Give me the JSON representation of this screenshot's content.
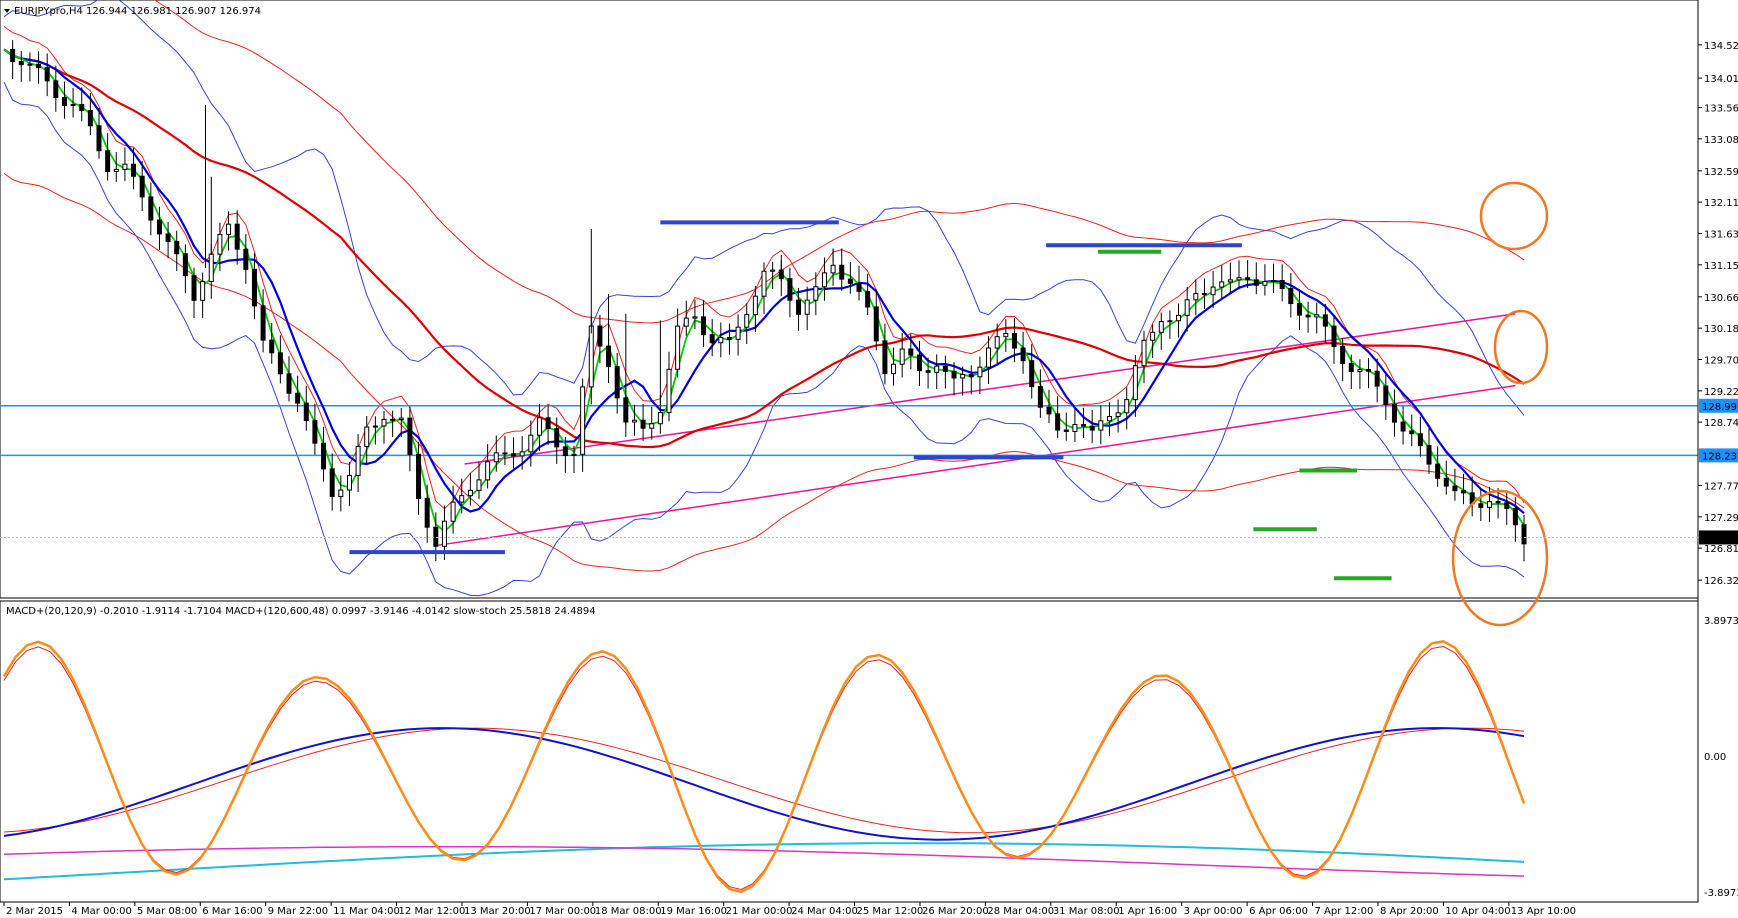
{
  "chart_data": {
    "type": "candlestick",
    "header_text": "EURJPYpro,H4  126.944 126.981 126.907 126.974",
    "indicator_text": "MACD+(20,120,9) -0.2010 -1.9114 -1.7104  MACD+(120,600,48) 0.0997 -3.9146 -4.0142  slow-stoch 25.5818 24.4894",
    "price_axis_ticks": [
      "134.520",
      "134.010",
      "133.560",
      "133.080",
      "132.590",
      "132.110",
      "131.630",
      "131.150",
      "130.660",
      "130.180",
      "129.700",
      "129.220",
      "128.740",
      "127.770",
      "127.290",
      "126.810",
      "126.320"
    ],
    "current_price": "126.974",
    "hlines": [
      {
        "price": 128.991,
        "label": "128.991",
        "color": "#1E90FF"
      },
      {
        "price": 128.231,
        "label": "128.231",
        "color": "#1E90FF"
      }
    ],
    "ylim": [
      126.2,
      134.9
    ],
    "sub_axis_ticks": [
      "3.8973",
      "0.00",
      "-3.8973"
    ],
    "x_labels": [
      "2 Mar 2015",
      "4 Mar 00:00",
      "5 Mar 08:00",
      "6 Mar 16:00",
      "9 Mar 22:00",
      "11 Mar 04:00",
      "12 Mar 12:00",
      "13 Mar 20:00",
      "17 Mar 00:00",
      "18 Mar 08:00",
      "19 Mar 16:00",
      "21 Mar 00:00",
      "24 Mar 04:00",
      "25 Mar 12:00",
      "26 Mar 20:00",
      "28 Mar 04:00",
      "31 Mar 08:00",
      "1 Apr 16:00",
      "3 Apr 00:00",
      "6 Apr 06:00",
      "7 Apr 12:00",
      "8 Apr 20:00",
      "10 Apr 04:00",
      "13 Apr 10:00"
    ],
    "close_path": [
      [
        0,
        134.45
      ],
      [
        6,
        134.3
      ],
      [
        12,
        134.05
      ],
      [
        18,
        133.8
      ],
      [
        24,
        133.6
      ],
      [
        30,
        133.2
      ],
      [
        36,
        132.7
      ],
      [
        42,
        132.6
      ],
      [
        48,
        132.2
      ],
      [
        54,
        131.7
      ],
      [
        60,
        131.2
      ],
      [
        66,
        130.7
      ],
      [
        72,
        131.3
      ],
      [
        78,
        131.7
      ],
      [
        84,
        131.2
      ],
      [
        90,
        129.9
      ],
      [
        96,
        129.5
      ],
      [
        102,
        129.1
      ],
      [
        108,
        128.3
      ],
      [
        114,
        127.7
      ],
      [
        120,
        127.9
      ],
      [
        126,
        128.6
      ],
      [
        132,
        128.9
      ],
      [
        138,
        128.7
      ],
      [
        144,
        127.6
      ],
      [
        150,
        126.9
      ],
      [
        156,
        127.4
      ],
      [
        162,
        127.8
      ],
      [
        168,
        128.1
      ],
      [
        174,
        128.2
      ],
      [
        180,
        128.4
      ],
      [
        186,
        128.7
      ],
      [
        192,
        128.4
      ],
      [
        198,
        128.3
      ],
      [
        204,
        130.1
      ],
      [
        210,
        129.7
      ],
      [
        216,
        128.7
      ],
      [
        222,
        128.6
      ],
      [
        228,
        129.0
      ],
      [
        234,
        130.1
      ],
      [
        240,
        130.4
      ],
      [
        246,
        130.0
      ],
      [
        252,
        129.9
      ],
      [
        258,
        130.5
      ],
      [
        264,
        131.0
      ],
      [
        270,
        130.9
      ],
      [
        276,
        130.5
      ],
      [
        282,
        130.7
      ],
      [
        288,
        131.2
      ],
      [
        294,
        130.9
      ],
      [
        300,
        130.4
      ],
      [
        306,
        129.6
      ],
      [
        312,
        129.8
      ],
      [
        318,
        129.5
      ],
      [
        324,
        129.7
      ],
      [
        330,
        129.3
      ],
      [
        336,
        129.5
      ],
      [
        342,
        129.9
      ],
      [
        348,
        130.0
      ],
      [
        354,
        129.8
      ],
      [
        360,
        128.9
      ],
      [
        366,
        128.6
      ],
      [
        372,
        128.8
      ],
      [
        378,
        128.5
      ],
      [
        384,
        128.9
      ],
      [
        390,
        129.1
      ],
      [
        396,
        129.9
      ],
      [
        402,
        130.4
      ],
      [
        408,
        130.3
      ],
      [
        414,
        130.7
      ],
      [
        420,
        130.9
      ],
      [
        426,
        130.8
      ],
      [
        432,
        131.0
      ],
      [
        438,
        130.9
      ],
      [
        444,
        130.7
      ],
      [
        450,
        130.5
      ],
      [
        456,
        130.3
      ],
      [
        462,
        129.9
      ],
      [
        468,
        129.6
      ],
      [
        474,
        129.4
      ],
      [
        480,
        129.1
      ],
      [
        486,
        128.6
      ],
      [
        492,
        128.3
      ],
      [
        498,
        128.0
      ],
      [
        504,
        127.6
      ],
      [
        510,
        127.5
      ],
      [
        516,
        127.6
      ],
      [
        522,
        127.3
      ],
      [
        528,
        126.97
      ]
    ],
    "hl_spikes": [
      [
        70,
        133.6
      ],
      [
        72,
        132.5
      ],
      [
        204,
        131.7
      ],
      [
        210,
        130.7
      ],
      [
        216,
        130.4
      ],
      [
        228,
        130.3
      ],
      [
        270,
        131.3
      ],
      [
        288,
        131.4
      ]
    ],
    "indicator_series_style": {
      "ma_fast": "#00CC00",
      "ma_mid": "#0000DD",
      "ma_slow": "#DD0000",
      "bands": "#3344DD",
      "env": "#EE2222",
      "trend": "#EE1199",
      "support": "#2E44CC",
      "marker": "#22AA22",
      "circle": "#F07820",
      "macd_blue": "#1111CC",
      "macd_red": "#EE2222",
      "cyan": "#22BBDD",
      "magenta": "#DD33CC",
      "stoch_orange": "#FF8C1A"
    }
  }
}
